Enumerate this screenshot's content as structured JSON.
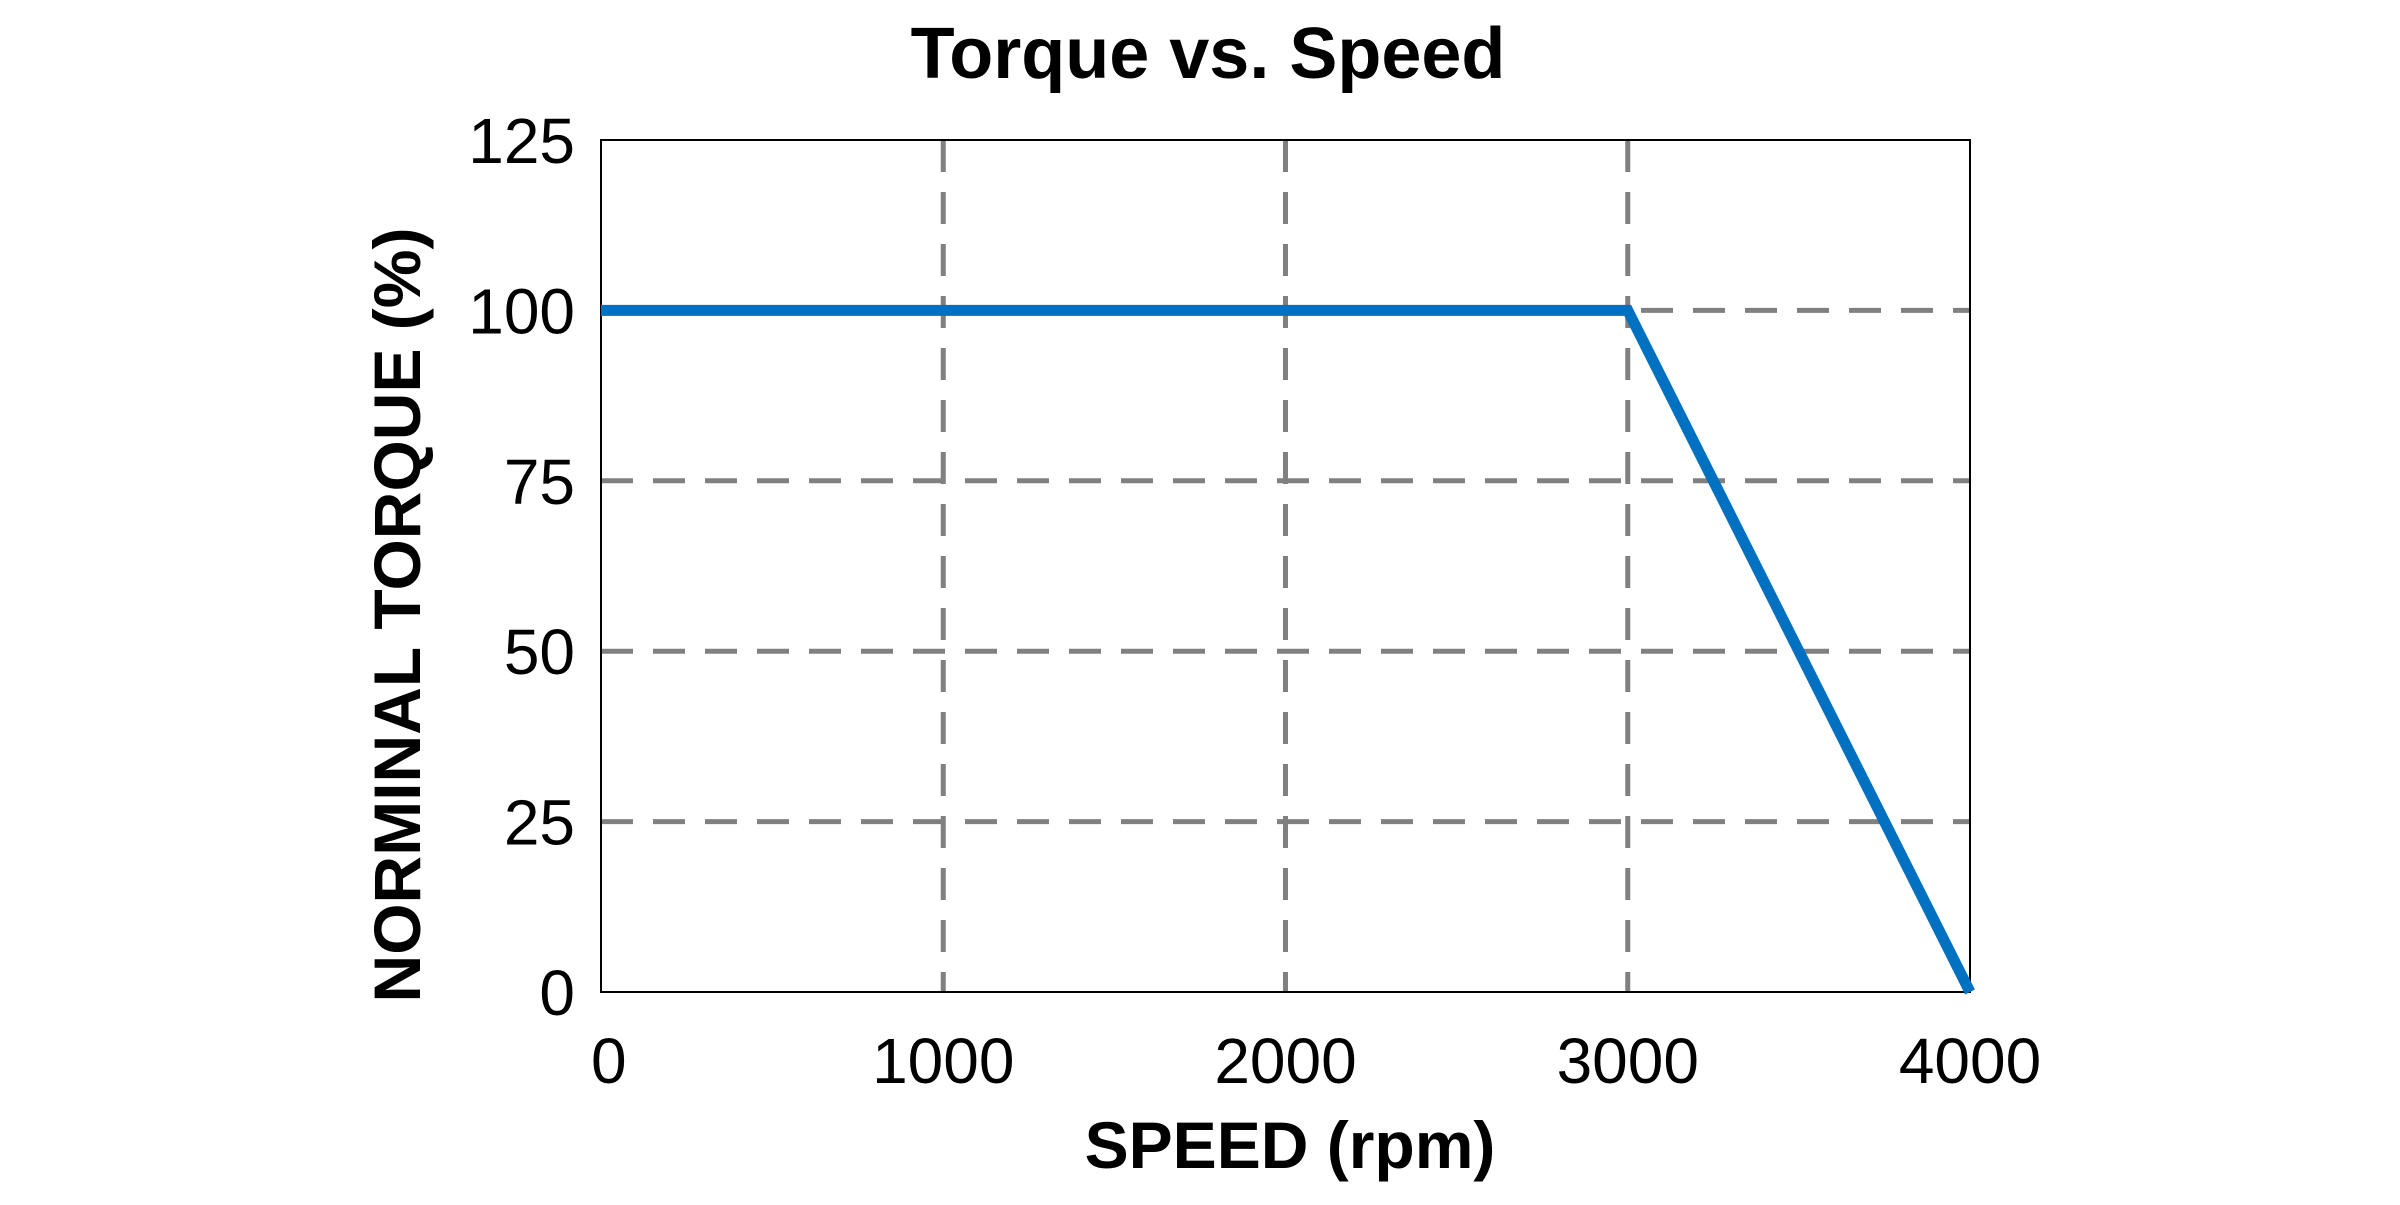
{
  "chart_data": {
    "type": "line",
    "title": "Torque vs. Speed",
    "xlabel": "SPEED (rpm)",
    "ylabel": "NORMINAL TORQUE (%)",
    "xlim": [
      0,
      4000
    ],
    "ylim": [
      0,
      125
    ],
    "x_ticks": [
      "0",
      "1000",
      "2000",
      "3000",
      "4000"
    ],
    "y_ticks": [
      "0",
      "25",
      "50",
      "75",
      "100",
      "125"
    ],
    "grid": true,
    "grid_style": "dashed",
    "series": [
      {
        "color": "#0070c0",
        "x": [
          0,
          3000,
          4000
        ],
        "y": [
          100,
          100,
          0
        ]
      }
    ]
  },
  "colors": {
    "line": "#0070c0",
    "grid": "#808080",
    "frame": "#000000"
  }
}
